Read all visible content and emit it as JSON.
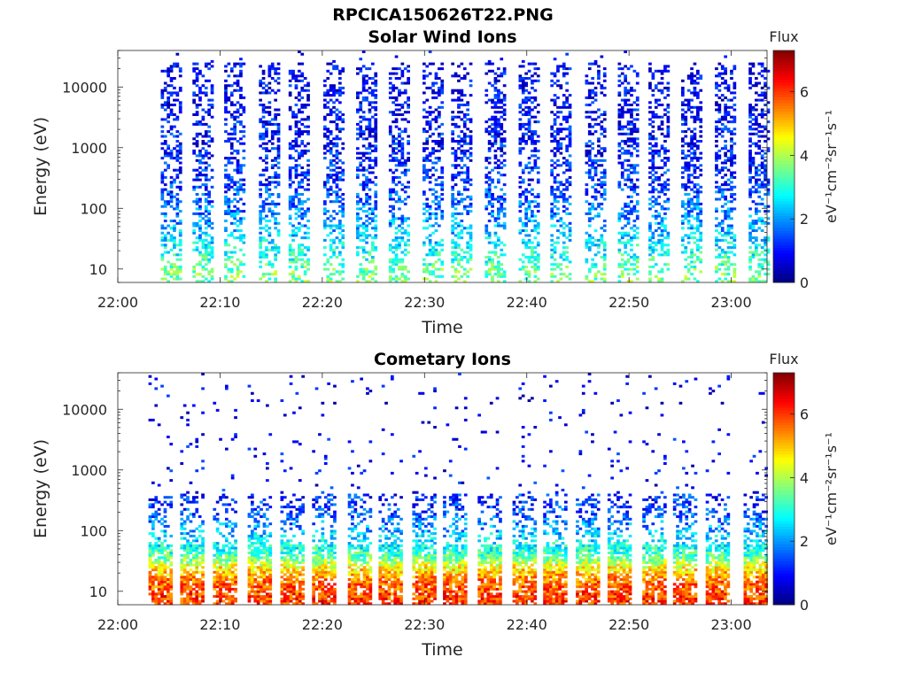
{
  "figure": {
    "title": "RPCICA150626T22.PNG"
  },
  "colormap": [
    "#00007f",
    "#0000ff",
    "#007fff",
    "#00ffff",
    "#7fff7f",
    "#ffff00",
    "#ff7f00",
    "#ff0000",
    "#7f0000"
  ],
  "chart_data": [
    {
      "type": "heatmap",
      "title": "Solar Wind Ions",
      "xlabel": "Time",
      "ylabel": "Energy (eV)",
      "x_range_minutes": [
        0,
        63.5
      ],
      "x_ticks": [
        {
          "minute": 0,
          "label": "22:00"
        },
        {
          "minute": 10,
          "label": "22:10"
        },
        {
          "minute": 20,
          "label": "22:20"
        },
        {
          "minute": 30,
          "label": "22:30"
        },
        {
          "minute": 40,
          "label": "22:40"
        },
        {
          "minute": 50,
          "label": "22:50"
        },
        {
          "minute": 60,
          "label": "23:00"
        }
      ],
      "y_scale": "log",
      "y_range": [
        6,
        40000
      ],
      "y_ticks": [
        {
          "value": 10,
          "label": "10"
        },
        {
          "value": 100,
          "label": "100"
        },
        {
          "value": 1000,
          "label": "1000"
        },
        {
          "value": 10000,
          "label": "10000"
        }
      ],
      "colorbar": {
        "label": "Flux",
        "unit_label": "eV⁻¹cm⁻²sr⁻¹s⁻¹",
        "range": [
          0,
          7.3
        ],
        "ticks": [
          {
            "value": 0,
            "label": "0"
          },
          {
            "value": 2,
            "label": "2"
          },
          {
            "value": 4,
            "label": "4"
          },
          {
            "value": 6,
            "label": "6"
          }
        ]
      },
      "sweep_start_minutes": [
        4.2,
        7.3,
        10.4,
        13.8,
        16.7,
        20.1,
        23.3,
        26.5,
        29.8,
        32.6,
        35.9,
        39.2,
        42.3,
        45.7,
        48.9,
        51.9,
        55.1,
        58.4,
        61.7
      ],
      "sweep_width_minutes": 1.8,
      "flux_profile": [
        {
          "energy": 8,
          "flux": 3.6
        },
        {
          "energy": 20,
          "flux": 2.8
        },
        {
          "energy": 60,
          "flux": 2.0
        },
        {
          "energy": 300,
          "flux": 1.2
        },
        {
          "energy": 3000,
          "flux": 0.9
        },
        {
          "energy": 30000,
          "flux": 0.7
        }
      ],
      "grid": false
    },
    {
      "type": "heatmap",
      "title": "Cometary Ions",
      "xlabel": "Time",
      "ylabel": "Energy (eV)",
      "x_range_minutes": [
        0,
        63.5
      ],
      "x_ticks": [
        {
          "minute": 0,
          "label": "22:00"
        },
        {
          "minute": 10,
          "label": "22:10"
        },
        {
          "minute": 20,
          "label": "22:20"
        },
        {
          "minute": 30,
          "label": "22:30"
        },
        {
          "minute": 40,
          "label": "22:40"
        },
        {
          "minute": 50,
          "label": "22:50"
        },
        {
          "minute": 60,
          "label": "23:00"
        }
      ],
      "y_scale": "log",
      "y_range": [
        6,
        40000
      ],
      "y_ticks": [
        {
          "value": 10,
          "label": "10"
        },
        {
          "value": 100,
          "label": "100"
        },
        {
          "value": 1000,
          "label": "1000"
        },
        {
          "value": 10000,
          "label": "10000"
        }
      ],
      "colorbar": {
        "label": "Flux",
        "unit_label": "eV⁻¹cm⁻²sr⁻¹s⁻¹",
        "range": [
          0,
          7.3
        ],
        "ticks": [
          {
            "value": 0,
            "label": "0"
          },
          {
            "value": 2,
            "label": "2"
          },
          {
            "value": 4,
            "label": "4"
          },
          {
            "value": 6,
            "label": "6"
          }
        ]
      },
      "sweep_start_minutes": [
        3.0,
        6.1,
        9.3,
        12.7,
        15.9,
        19.0,
        22.5,
        25.5,
        28.8,
        31.8,
        35.2,
        38.6,
        41.6,
        44.8,
        47.9,
        51.3,
        54.3,
        57.5,
        61.2
      ],
      "sweep_width_minutes": 2.2,
      "flux_profile": [
        {
          "energy": 8,
          "flux": 6.0
        },
        {
          "energy": 15,
          "flux": 5.6
        },
        {
          "energy": 25,
          "flux": 4.6
        },
        {
          "energy": 40,
          "flux": 3.2
        },
        {
          "energy": 80,
          "flux": 2.4
        },
        {
          "energy": 200,
          "flux": 1.4
        },
        {
          "energy": 1000,
          "flux": 0.8
        },
        {
          "energy": 20000,
          "flux": 0.6
        }
      ],
      "grid": false
    }
  ]
}
